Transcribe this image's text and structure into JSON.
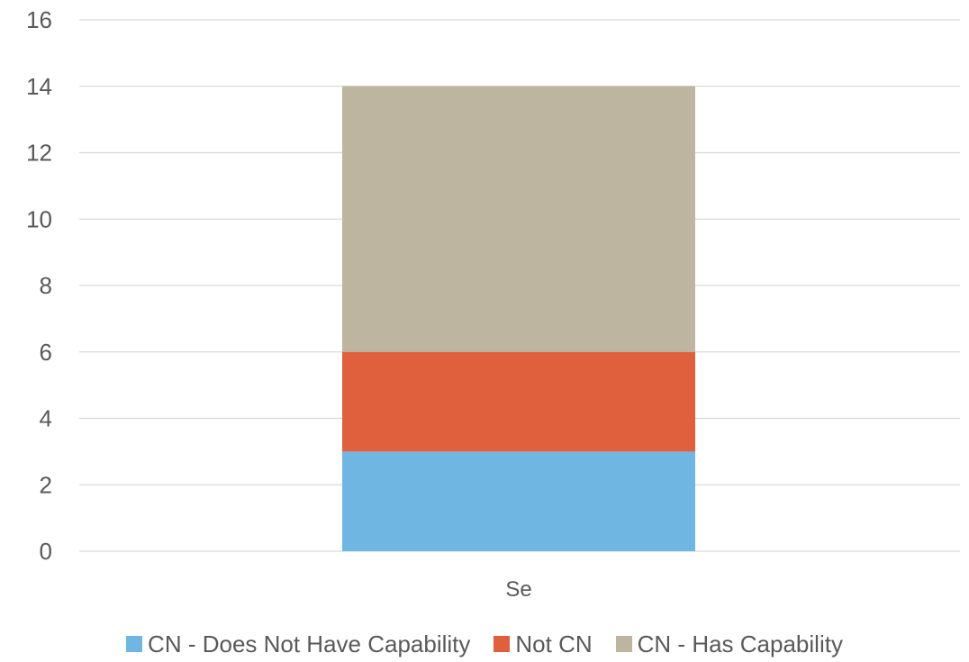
{
  "chart_data": {
    "type": "bar",
    "stacked": true,
    "title": "",
    "xlabel": "",
    "ylabel": "",
    "categories": [
      "Se"
    ],
    "series": [
      {
        "name": "CN - Does Not Have Capability",
        "values": [
          3
        ],
        "color": "#70B6E2"
      },
      {
        "name": "Not CN",
        "values": [
          3
        ],
        "color": "#E05F3C"
      },
      {
        "name": "CN - Has Capability",
        "values": [
          8
        ],
        "color": "#BDB59F"
      }
    ],
    "ylim": [
      0,
      16
    ],
    "yticks": [
      "0",
      "2",
      "4",
      "6",
      "8",
      "10",
      "12",
      "14",
      "16"
    ],
    "grid": true,
    "legend_position": "bottom"
  }
}
